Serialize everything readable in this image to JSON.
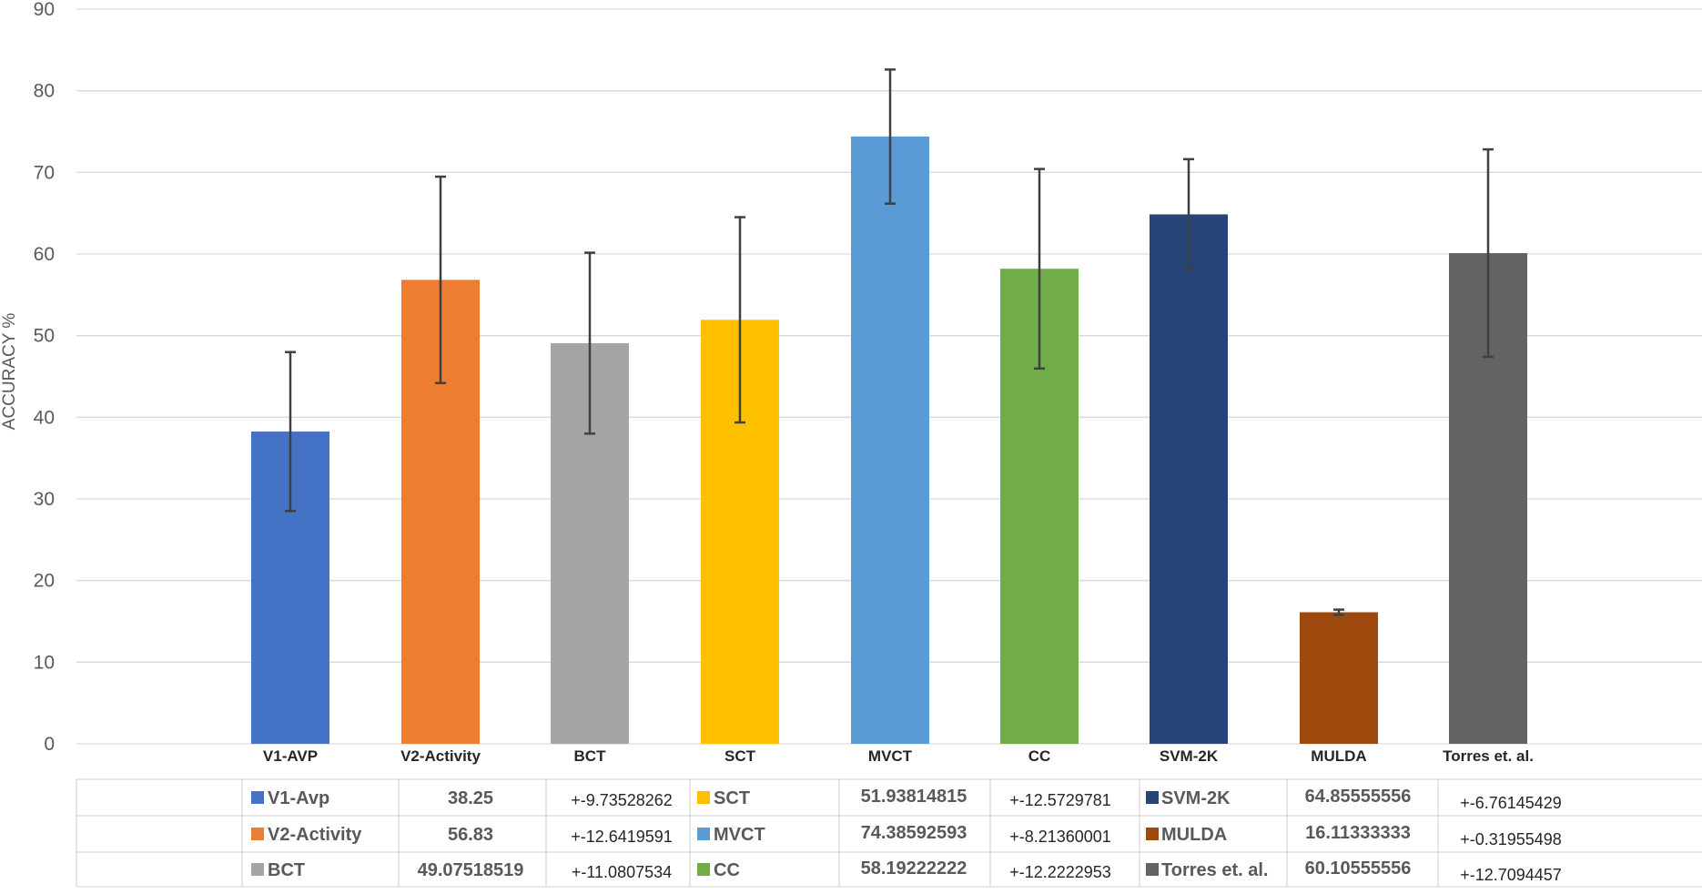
{
  "chart_data": {
    "type": "bar",
    "title": "",
    "xlabel": "",
    "ylabel": "ACCURACY  %",
    "ylim": [
      0,
      90
    ],
    "yticks": [
      0,
      10,
      20,
      30,
      40,
      50,
      60,
      70,
      80,
      90
    ],
    "grid": true,
    "categories": [
      "V1-AVP",
      "V2-Activity",
      "BCT",
      "SCT",
      "MVCT",
      "CC",
      "SVM-2K",
      "MULDA",
      "Torres et. al."
    ],
    "values": [
      38.25,
      56.83,
      49.07518519,
      51.93814815,
      74.38592593,
      58.19222222,
      64.85555556,
      16.11333333,
      60.10555556
    ],
    "errors": [
      9.73528262,
      12.6419591,
      11.0807534,
      12.5729781,
      8.21360001,
      12.2222953,
      6.76145429,
      0.31955498,
      12.7094457
    ],
    "colors": [
      "#4472C4",
      "#ED7D31",
      "#A5A5A5",
      "#FFC000",
      "#5B9BD5",
      "#70AD47",
      "#264478",
      "#9E480E",
      "#636363"
    ],
    "error_bar_color": "#404040",
    "legend_position": "bottom-table",
    "table": [
      [
        {
          "label": "V1-Avp",
          "value": "38.25",
          "error": "+-9.73528262",
          "color": "#4472C4"
        },
        {
          "label": "SCT",
          "value": "51.93814815",
          "error": "+-12.5729781",
          "color": "#FFC000"
        },
        {
          "label": "SVM-2K",
          "value": "64.85555556",
          "error": "+-6.76145429",
          "color": "#264478"
        }
      ],
      [
        {
          "label": "V2-Activity",
          "value": "56.83",
          "error": "+-12.6419591",
          "color": "#ED7D31"
        },
        {
          "label": "MVCT",
          "value": "74.38592593",
          "error": "+-8.21360001",
          "color": "#5B9BD5"
        },
        {
          "label": "MULDA",
          "value": "16.11333333",
          "error": "+-0.31955498",
          "color": "#9E480E"
        }
      ],
      [
        {
          "label": "BCT",
          "value": "49.07518519",
          "error": "+-11.0807534",
          "color": "#A5A5A5"
        },
        {
          "label": "CC",
          "value": "58.19222222",
          "error": "+-12.2222953",
          "color": "#70AD47"
        },
        {
          "label": "Torres et. al.",
          "value": "60.10555556",
          "error": "+-12.7094457",
          "color": "#636363"
        }
      ]
    ]
  }
}
